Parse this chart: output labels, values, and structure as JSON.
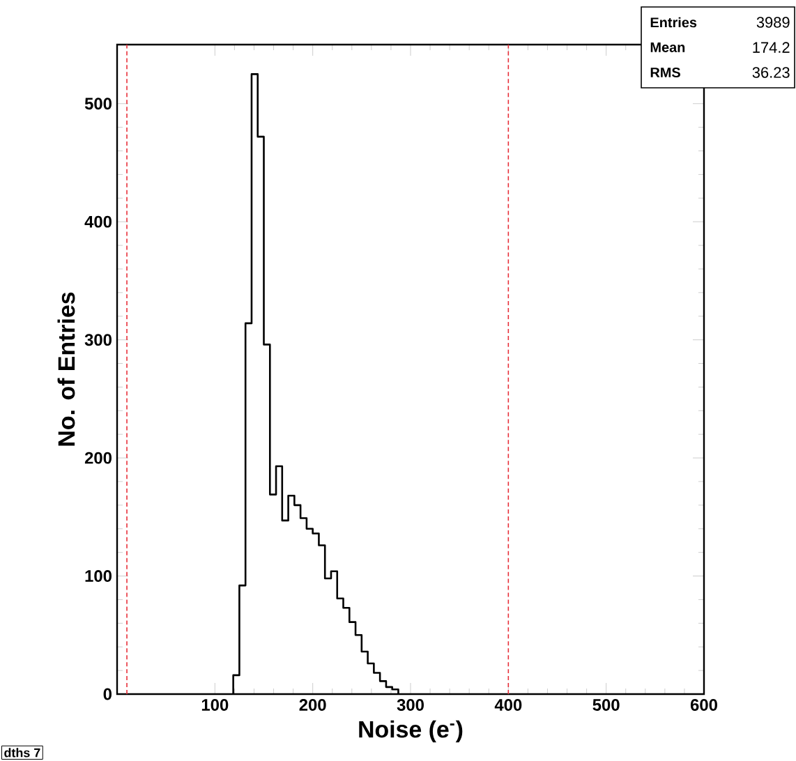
{
  "chart_data": {
    "type": "histogram",
    "xlabel": "Noise (e$^{-}$)",
    "ylabel": "No. of Entries",
    "bins": [
      118.75,
      125,
      131.25,
      137.5,
      143.75,
      150,
      156.25,
      162.5,
      168.75,
      175,
      181.25,
      187.5,
      193.75,
      200,
      206.25,
      212.5,
      218.75,
      225,
      231.25,
      237.5,
      243.75,
      250,
      256.25,
      262.5,
      268.75,
      275,
      281.25,
      287.5
    ],
    "values": [
      16,
      92,
      314,
      525,
      472,
      296,
      169,
      193,
      147,
      168,
      160,
      149,
      140,
      136,
      126,
      98,
      104,
      81,
      73,
      61,
      50,
      36,
      26,
      18,
      11,
      6,
      4
    ],
    "color": "#000000",
    "xlim": [
      0,
      600
    ],
    "ylim": [
      0,
      550
    ],
    "xticks": [
      100,
      200,
      300,
      400,
      500,
      600
    ],
    "yticks": [
      0,
      100,
      200,
      300,
      400,
      500
    ],
    "ref_lines": [
      {
        "axis": "x",
        "value": 10,
        "color": "#e8303a",
        "line_style": "dotted"
      },
      {
        "axis": "x",
        "value": 400,
        "color": "#e8303a",
        "line_style": "dotted"
      }
    ],
    "grid": false,
    "annotations": [
      "Entries",
      "3989",
      "Mean",
      "174.2",
      "RMS",
      "36.23",
      "dths 7"
    ]
  }
}
